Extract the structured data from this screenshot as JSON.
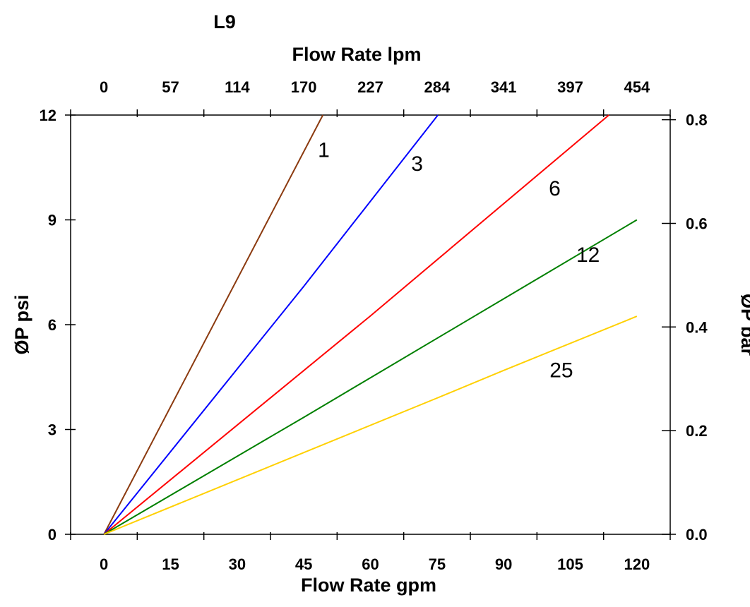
{
  "chart_data": {
    "type": "line",
    "title": "L9",
    "xlabel": "Flow Rate gpm",
    "x2label": "Flow Rate lpm",
    "ylabel": "ØP psi",
    "y2label": "ØP bar",
    "xlim": [
      -7.5,
      127.5
    ],
    "ylim": [
      0,
      12
    ],
    "y2lim": [
      0,
      0.809
    ],
    "grid": false,
    "x_ticks": [
      0,
      15,
      30,
      45,
      60,
      75,
      90,
      105,
      120
    ],
    "x_tick_labels": [
      "0",
      "15",
      "30",
      "45",
      "60",
      "75",
      "90",
      "105",
      "120"
    ],
    "x2_tick_labels": [
      "0",
      "57",
      "114",
      "170",
      "227",
      "284",
      "341",
      "397",
      "454"
    ],
    "y_ticks": [
      0,
      3,
      6,
      9,
      12
    ],
    "y_tick_labels": [
      "0",
      "3",
      "6",
      "9",
      "12"
    ],
    "y2_ticks": [
      0,
      0.2,
      0.4,
      0.6,
      0.8
    ],
    "y2_tick_labels": [
      "0.0",
      "0.2",
      "0.4",
      "0.6",
      "0.8"
    ],
    "series": [
      {
        "name": "1",
        "color": "#8B3A0F",
        "x": [
          0,
          49.3
        ],
        "y": [
          0,
          12
        ],
        "label_at": [
          49.5,
          10.8
        ]
      },
      {
        "name": "3",
        "color": "#0000FF",
        "x": [
          0,
          45,
          75.2
        ],
        "y": [
          0,
          7.1,
          12
        ],
        "label_at": [
          70.5,
          10.4
        ]
      },
      {
        "name": "6",
        "color": "#FF0000",
        "x": [
          0,
          60,
          113.7
        ],
        "y": [
          0,
          6.25,
          12
        ],
        "label_at": [
          101.5,
          9.7
        ]
      },
      {
        "name": "12",
        "color": "#008000",
        "x": [
          0,
          45,
          120
        ],
        "y": [
          0,
          3.35,
          9.0
        ],
        "label_at": [
          109,
          7.8
        ]
      },
      {
        "name": "25",
        "color": "#FFD000",
        "x": [
          0,
          75,
          90,
          120
        ],
        "y": [
          0,
          3.9,
          4.69,
          6.24
        ],
        "label_at": [
          103,
          4.5
        ]
      }
    ]
  }
}
